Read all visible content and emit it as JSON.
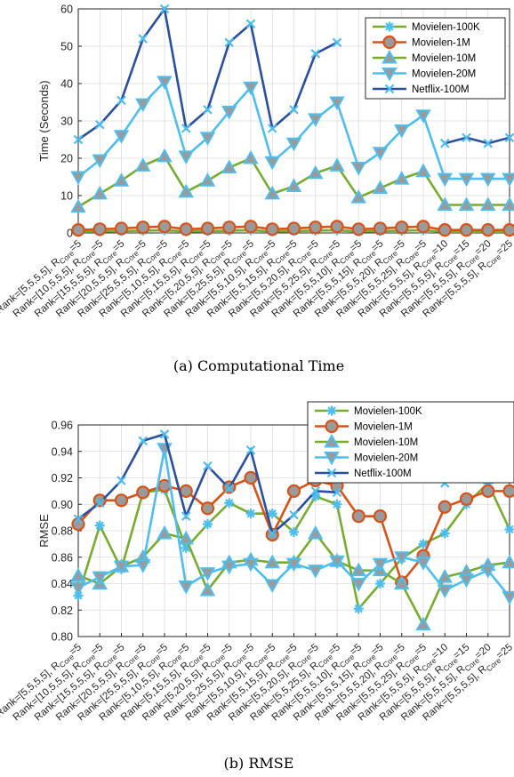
{
  "chart_data": [
    {
      "type": "line",
      "ylabel": "Time (Seconds)",
      "ylim": [
        0,
        60
      ],
      "yticks": [
        0,
        10,
        20,
        30,
        40,
        50,
        60
      ],
      "grid": true,
      "legend_position": "top-right",
      "caption": "(a) Computational Time",
      "categories": [
        "Rank=[5,5,5,5], R_Core=5",
        "Rank=[10,5,5,5], R_Core=5",
        "Rank=[15,5,5,5], R_Core=5",
        "Rank=[20,5,5,5], R_Core=5",
        "Rank=[25,5,5,5], R_Core=5",
        "Rank=[5,10,5,5], R_Core=5",
        "Rank=[5,15,5,5], R_Core=5",
        "Rank=[5,20,5,5], R_Core=5",
        "Rank=[5,25,5,5], R_Core=5",
        "Rank=[5,5,10,5], R_Core=5",
        "Rank=[5,5,15,5], R_Core=5",
        "Rank=[5,5,20,5], R_Core=5",
        "Rank=[5,5,25,5], R_Core=5",
        "Rank=[5,5,5,10], R_Core=5",
        "Rank=[5,5,5,15], R_Core=5",
        "Rank=[5,5,5,20], R_Core=5",
        "Rank=[5,5,5,25], R_Core=5",
        "Rank=[5,5,5,5], R_Core=10",
        "Rank=[5,5,5,5], R_Core=15",
        "Rank=[5,5,5,5], R_Core=20",
        "Rank=[5,5,5,5], R_Core=25"
      ],
      "series": [
        {
          "name": "Movielen-100K",
          "color": "#77ac30",
          "marker": "asterisk",
          "values": [
            0.3,
            0.4,
            0.5,
            0.6,
            0.7,
            0.4,
            0.5,
            0.6,
            0.7,
            0.4,
            0.5,
            0.6,
            0.7,
            0.4,
            0.5,
            0.6,
            0.7,
            0.3,
            0.3,
            0.3,
            0.3
          ]
        },
        {
          "name": "Movielen-1M",
          "color": "#d95319",
          "marker": "circle",
          "values": [
            0.8,
            1.0,
            1.2,
            1.5,
            1.7,
            1.0,
            1.2,
            1.5,
            1.7,
            1.0,
            1.2,
            1.5,
            1.7,
            1.0,
            1.2,
            1.5,
            1.7,
            0.8,
            0.8,
            0.8,
            0.8
          ]
        },
        {
          "name": "Movielen-10M",
          "color": "#77ac30",
          "marker": "triangle-up",
          "values": [
            7,
            10.5,
            14,
            18,
            20.5,
            11,
            14,
            17.5,
            20,
            10.5,
            12.5,
            16,
            18,
            9.5,
            12,
            14.5,
            16.5,
            7.5,
            7.5,
            7.5,
            7.5
          ]
        },
        {
          "name": "Movielen-20M",
          "color": "#4dbeee",
          "marker": "triangle-down",
          "values": [
            15,
            19.5,
            26,
            34.5,
            40.5,
            20.5,
            25.5,
            32.5,
            39,
            19,
            24,
            30.5,
            35,
            17.5,
            21.5,
            27.5,
            31.5,
            14.5,
            14.5,
            14.5,
            14.5
          ]
        },
        {
          "name": "Netflix-100M",
          "color": "#2a4fa0",
          "marker": "x",
          "values": [
            25,
            29,
            35.5,
            52,
            60,
            28,
            33,
            51,
            56,
            28,
            33,
            48,
            51,
            null,
            null,
            null,
            null,
            24,
            25.5,
            24,
            25.5
          ]
        }
      ]
    },
    {
      "type": "line",
      "ylabel": "RMSE",
      "ylim": [
        0.8,
        0.96
      ],
      "yticks": [
        0.8,
        0.82,
        0.84,
        0.86,
        0.88,
        0.9,
        0.92,
        0.94,
        0.96
      ],
      "grid": true,
      "legend_position": "top-right",
      "caption": "(b) RMSE",
      "categories": [
        "Rank=[5,5,5,5], R_Core=5",
        "Rank=[10,5,5,5], R_Core=5",
        "Rank=[15,5,5,5], R_Core=5",
        "Rank=[20,5,5,5], R_Core=5",
        "Rank=[25,5,5,5], R_Core=5",
        "Rank=[5,10,5,5], R_Core=5",
        "Rank=[5,15,5,5], R_Core=5",
        "Rank=[5,20,5,5], R_Core=5",
        "Rank=[5,25,5,5], R_Core=5",
        "Rank=[5,5,10,5], R_Core=5",
        "Rank=[5,5,15,5], R_Core=5",
        "Rank=[5,5,20,5], R_Core=5",
        "Rank=[5,5,25,5], R_Core=5",
        "Rank=[5,5,5,10], R_Core=5",
        "Rank=[5,5,5,15], R_Core=5",
        "Rank=[5,5,5,20], R_Core=5",
        "Rank=[5,5,5,25], R_Core=5",
        "Rank=[5,5,5,5], R_Core=10",
        "Rank=[5,5,5,5], R_Core=15",
        "Rank=[5,5,5,5], R_Core=20",
        "Rank=[5,5,5,5], R_Core=25"
      ],
      "series": [
        {
          "name": "Movielen-100K",
          "color": "#77ac30",
          "marker": "asterisk",
          "values": [
            0.831,
            0.884,
            0.851,
            0.909,
            0.911,
            0.867,
            0.885,
            0.901,
            0.893,
            0.893,
            0.879,
            0.906,
            0.9,
            0.821,
            0.84,
            0.859,
            0.87,
            0.878,
            0.9,
            0.916,
            0.881
          ]
        },
        {
          "name": "Movielen-1M",
          "color": "#d95319",
          "marker": "circle",
          "values": [
            0.885,
            0.903,
            0.903,
            0.909,
            0.914,
            0.91,
            0.897,
            0.913,
            0.92,
            0.877,
            0.91,
            0.918,
            0.914,
            0.891,
            0.891,
            0.841,
            0.861,
            0.898,
            0.904,
            0.91,
            0.91
          ]
        },
        {
          "name": "Movielen-10M",
          "color": "#77ac30",
          "marker": "triangle-up",
          "values": [
            0.846,
            0.84,
            0.853,
            0.86,
            0.878,
            0.874,
            0.835,
            0.856,
            0.858,
            0.856,
            0.856,
            0.878,
            0.857,
            0.85,
            0.85,
            0.84,
            0.809,
            0.845,
            0.849,
            0.854,
            0.856
          ]
        },
        {
          "name": "Movielen-20M",
          "color": "#4dbeee",
          "marker": "triangle-down",
          "values": [
            0.837,
            0.845,
            0.853,
            0.854,
            0.942,
            0.838,
            0.848,
            0.853,
            0.855,
            0.839,
            0.855,
            0.85,
            0.857,
            0.84,
            0.855,
            0.86,
            0.856,
            0.835,
            0.843,
            0.85,
            0.83
          ]
        },
        {
          "name": "Netflix-100M",
          "color": "#2a4fa0",
          "marker": "x",
          "values": [
            0.889,
            0.901,
            0.918,
            0.948,
            0.953,
            0.891,
            0.929,
            0.912,
            0.941,
            0.878,
            0.892,
            0.91,
            0.909,
            null,
            null,
            null,
            null,
            0.916,
            0.947,
            0.948,
            0.958
          ]
        }
      ]
    }
  ]
}
